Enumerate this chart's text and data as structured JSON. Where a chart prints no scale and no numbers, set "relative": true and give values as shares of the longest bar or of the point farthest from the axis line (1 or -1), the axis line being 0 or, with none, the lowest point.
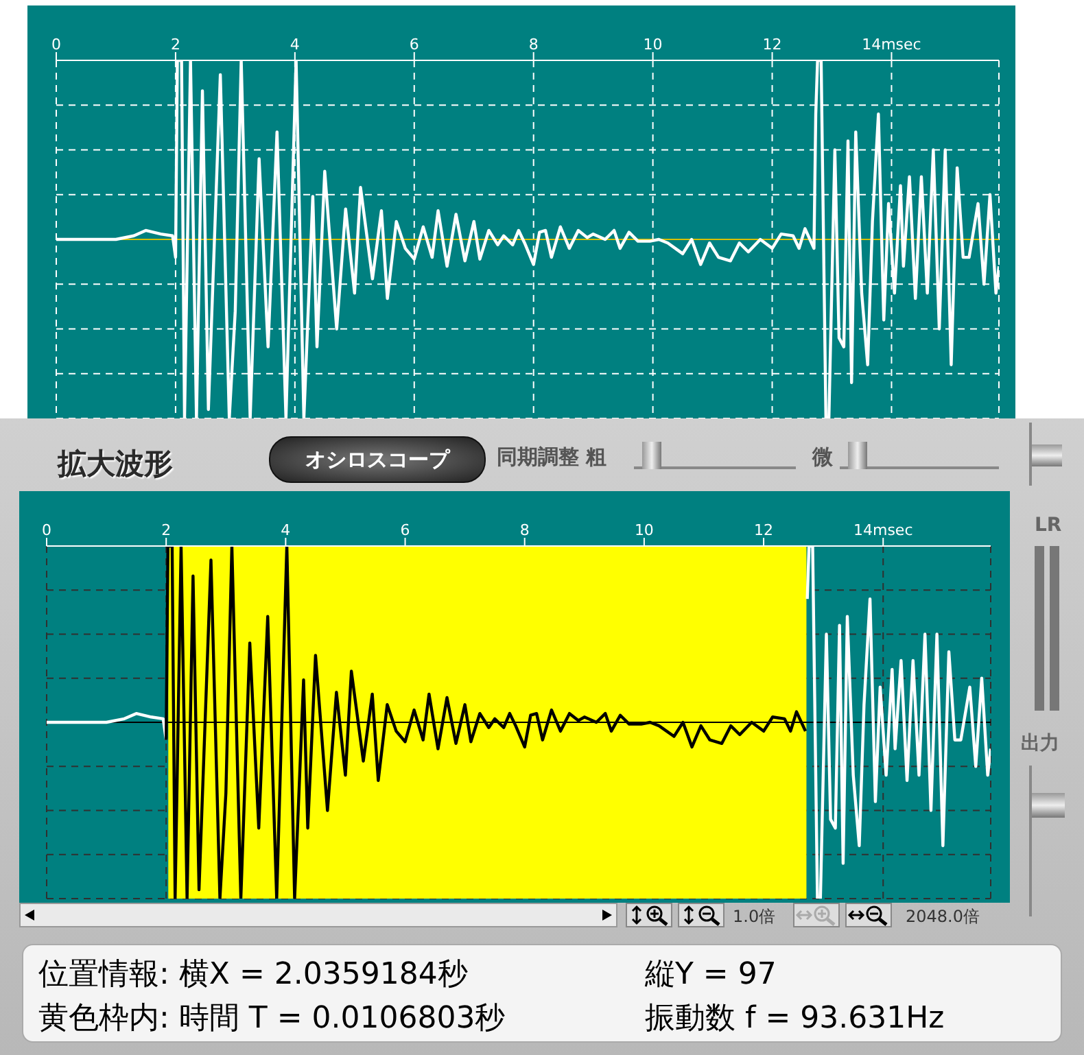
{
  "chart_data": [
    {
      "type": "line",
      "relative": true,
      "xlim": [
        0,
        15.8
      ],
      "xticks": [
        0,
        2,
        4,
        6,
        8,
        10,
        12,
        {
          "value": 14,
          "label": "14msec"
        }
      ],
      "grid": true,
      "ref_lines": [
        {
          "axis": "y",
          "value": 0,
          "color": "#d8c000"
        }
      ],
      "series": [
        {
          "color": "#ffffff",
          "x": [
            0,
            0.5,
            1.0,
            1.3,
            1.5,
            1.75,
            1.95,
            2.0,
            2.03,
            2.1,
            2.15,
            2.25,
            2.35,
            2.45,
            2.55,
            2.75,
            2.9,
            3.0,
            3.1,
            3.25,
            3.4,
            3.55,
            3.7,
            3.85,
            4.02,
            4.15,
            4.3,
            4.37,
            4.5,
            4.7,
            4.85,
            5.0,
            5.1,
            5.3,
            5.45,
            5.55,
            5.7,
            5.85,
            6.0,
            6.15,
            6.3,
            6.4,
            6.55,
            6.7,
            6.85,
            7.0,
            7.1,
            7.25,
            7.4,
            7.5,
            7.65,
            7.75,
            7.85,
            8.0,
            8.1,
            8.2,
            8.3,
            8.45,
            8.6,
            8.75,
            8.9,
            9.0,
            9.2,
            9.35,
            9.45,
            9.6,
            9.75,
            9.95,
            10.1,
            10.25,
            10.5,
            10.65,
            10.8,
            10.95,
            11.1,
            11.3,
            11.45,
            11.6,
            11.8,
            12.0,
            12.15,
            12.35,
            12.45,
            12.55,
            12.7,
            12.73,
            12.76,
            12.82,
            12.9,
            12.95,
            13.05,
            13.12,
            13.2,
            13.27,
            13.33,
            13.4,
            13.5,
            13.6,
            13.68,
            13.78,
            13.87,
            13.95,
            14.05,
            14.15,
            14.2,
            14.3,
            14.4,
            14.5,
            14.6,
            14.7,
            14.8,
            14.9,
            15.0,
            15.1,
            15.2,
            15.3,
            15.45,
            15.55,
            15.65,
            15.75,
            15.8
          ],
          "values": [
            0,
            0,
            0,
            0.02,
            0.05,
            0.03,
            0.02,
            -0.1,
            1,
            1,
            -1,
            1,
            -1,
            0.83,
            -0.95,
            0.92,
            -1,
            -0.4,
            1,
            -1,
            0.45,
            -0.6,
            0.6,
            -1,
            1,
            -1,
            0.24,
            -0.6,
            0.38,
            -0.5,
            0.17,
            -0.3,
            0.29,
            -0.22,
            0.16,
            -0.33,
            0.1,
            -0.05,
            -0.11,
            0.07,
            -0.1,
            0.16,
            -0.15,
            0.14,
            -0.12,
            0.1,
            -0.11,
            0.05,
            -0.03,
            0.02,
            -0.03,
            0.05,
            -0.02,
            -0.14,
            0.04,
            0.05,
            -0.1,
            0.07,
            -0.05,
            0.05,
            0.01,
            0.03,
            0,
            0.05,
            -0.05,
            0.04,
            -0.01,
            -0.01,
            0,
            -0.02,
            -0.08,
            0,
            -0.14,
            -0.02,
            -0.1,
            -0.12,
            -0.02,
            -0.07,
            0,
            -0.05,
            0.03,
            0.02,
            -0.05,
            0.06,
            -0.05,
            0.7,
            1,
            1,
            -1,
            -1,
            0.5,
            -0.55,
            -0.6,
            0.55,
            -0.8,
            0.6,
            -0.3,
            -0.7,
            0.1,
            0.7,
            -0.45,
            0.2,
            -0.3,
            0.3,
            -0.15,
            0.35,
            -0.33,
            0.35,
            -0.3,
            0.5,
            -0.5,
            0.5,
            -0.7,
            0.4,
            -0.1,
            -0.1,
            0.2,
            -0.25,
            0.25,
            -0.3,
            -0.15
          ]
        }
      ]
    },
    {
      "type": "line",
      "relative": true,
      "title": "拡大波形",
      "xlim": [
        0,
        15.8
      ],
      "xticks": [
        0,
        2,
        4,
        6,
        8,
        10,
        12,
        {
          "value": 14,
          "label": "14msec"
        }
      ],
      "grid": true,
      "ref_lines": [
        {
          "axis": "y",
          "value": 0,
          "color": "#000000"
        }
      ],
      "bands": [
        {
          "axis": "x",
          "from": 2.0359184,
          "to": 12.7162,
          "color": "#ffff00"
        }
      ],
      "annotations": [
        "オシロスコープ",
        "同期調整 粗",
        "微",
        "LR",
        "出力",
        "1.0倍",
        "2048.0倍",
        "位置情報: 横X = 2.0359184秒",
        "縦Y = 97",
        "黄色枠内: 時間 T = 0.0106803秒",
        "振動数 f = 93.631Hz"
      ],
      "series": [
        {
          "color": "#ffffff",
          "x": [
            0,
            0.5,
            1.0,
            1.3,
            1.5,
            1.75,
            1.95,
            2.0,
            7,
            12.73,
            12.76,
            12.82,
            12.9,
            12.95,
            13.05,
            13.12,
            13.2,
            13.27,
            13.33,
            13.4,
            13.5,
            13.6,
            13.68,
            13.78,
            13.87,
            13.95,
            14.05,
            14.15,
            14.2,
            14.3,
            14.4,
            14.5,
            14.6,
            14.7,
            14.8,
            14.9,
            15.0,
            15.1,
            15.2,
            15.3,
            15.45,
            15.55,
            15.65,
            15.75,
            15.8
          ],
          "values": [
            0,
            0,
            0,
            0.02,
            0.05,
            0.03,
            0.02,
            -0.1,
            null,
            0.7,
            1,
            1,
            -1,
            -1,
            0.5,
            -0.55,
            -0.6,
            0.55,
            -0.8,
            0.6,
            -0.3,
            -0.7,
            0.1,
            0.7,
            -0.45,
            0.2,
            -0.3,
            0.3,
            -0.15,
            0.35,
            -0.33,
            0.35,
            -0.3,
            0.5,
            -0.5,
            0.5,
            -0.7,
            0.4,
            -0.1,
            -0.1,
            0.2,
            -0.25,
            0.25,
            -0.3,
            -0.15
          ]
        },
        {
          "color": "#000000",
          "x": [
            2.0,
            2.03,
            2.1,
            2.15,
            2.25,
            2.35,
            2.45,
            2.55,
            2.75,
            2.9,
            3.0,
            3.1,
            3.25,
            3.4,
            3.55,
            3.7,
            3.85,
            4.02,
            4.15,
            4.3,
            4.37,
            4.5,
            4.7,
            4.85,
            5.0,
            5.1,
            5.3,
            5.45,
            5.55,
            5.7,
            5.85,
            6.0,
            6.15,
            6.3,
            6.4,
            6.55,
            6.7,
            6.85,
            7.0,
            7.1,
            7.25,
            7.4,
            7.5,
            7.65,
            7.75,
            7.85,
            8.0,
            8.1,
            8.2,
            8.3,
            8.45,
            8.6,
            8.75,
            8.9,
            9.0,
            9.2,
            9.35,
            9.45,
            9.6,
            9.75,
            9.95,
            10.1,
            10.25,
            10.5,
            10.65,
            10.8,
            10.95,
            11.1,
            11.3,
            11.45,
            11.6,
            11.8,
            12.0,
            12.15,
            12.35,
            12.45,
            12.55,
            12.7
          ],
          "values": [
            -0.1,
            1,
            1,
            -1,
            1,
            -1,
            0.83,
            -0.95,
            0.92,
            -1,
            -0.4,
            1,
            -1,
            0.45,
            -0.6,
            0.6,
            -1,
            1,
            -1,
            0.24,
            -0.6,
            0.38,
            -0.5,
            0.17,
            -0.3,
            0.29,
            -0.22,
            0.16,
            -0.33,
            0.1,
            -0.05,
            -0.11,
            0.07,
            -0.1,
            0.16,
            -0.15,
            0.14,
            -0.12,
            0.1,
            -0.11,
            0.05,
            -0.03,
            0.02,
            -0.03,
            0.05,
            -0.02,
            -0.14,
            0.04,
            0.05,
            -0.1,
            0.07,
            -0.05,
            0.05,
            0.01,
            0.03,
            0,
            0.05,
            -0.05,
            0.04,
            -0.01,
            -0.01,
            0,
            -0.02,
            -0.08,
            0,
            -0.14,
            -0.02,
            -0.1,
            -0.12,
            -0.02,
            -0.07,
            0,
            -0.05,
            0.03,
            0.02,
            -0.05,
            0.06,
            -0.05
          ]
        }
      ]
    }
  ]
}
